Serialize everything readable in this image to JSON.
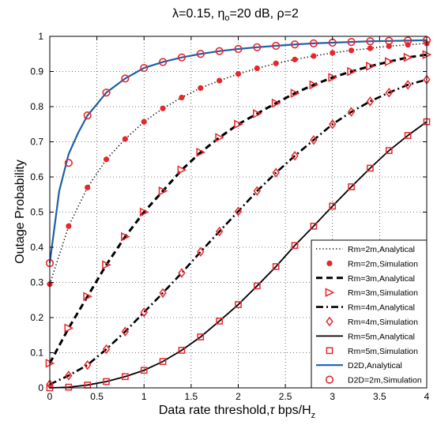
{
  "chart_data": {
    "type": "line",
    "title": "λ=0.15, η",
    "title_sub": "o",
    "title_rest": "=20 dB, ρ=2",
    "xlabel": "Data rate threshold,",
    "xlabel_symbol": "τ",
    "xlabel_unit": " bps/H",
    "xlabel_unit_sub": "z",
    "ylabel": "Outage Probability",
    "xlim": [
      0,
      4
    ],
    "ylim": [
      0,
      1
    ],
    "xticks": [
      "0",
      "0.5",
      "1",
      "1.5",
      "2",
      "2.5",
      "3",
      "3.5",
      "4"
    ],
    "yticks": [
      "0",
      "0.1",
      "0.2",
      "0.3",
      "0.4",
      "0.5",
      "0.6",
      "0.7",
      "0.8",
      "0.9",
      "1"
    ],
    "grid": true,
    "legend_position": "bottom-right",
    "series": [
      {
        "name": "Rm=2m,Analytical",
        "style": "dotted-line",
        "color": "#000000",
        "x": [
          0,
          0.2,
          0.4,
          0.6,
          0.8,
          1.0,
          1.2,
          1.4,
          1.6,
          1.8,
          2.0,
          2.2,
          2.4,
          2.6,
          2.8,
          3.0,
          3.2,
          3.4,
          3.6,
          3.8,
          4.0
        ],
        "y": [
          0.295,
          0.46,
          0.57,
          0.65,
          0.708,
          0.757,
          0.795,
          0.826,
          0.853,
          0.874,
          0.893,
          0.909,
          0.923,
          0.934,
          0.944,
          0.953,
          0.96,
          0.966,
          0.972,
          0.976,
          0.98
        ]
      },
      {
        "name": "Rm=2m,Simulation",
        "style": "filled-circle",
        "color": "#e8262b",
        "x": [
          0,
          0.2,
          0.4,
          0.6,
          0.8,
          1.0,
          1.2,
          1.4,
          1.6,
          1.8,
          2.0,
          2.2,
          2.4,
          2.6,
          2.8,
          3.0,
          3.2,
          3.4,
          3.6,
          3.8,
          4.0
        ],
        "y": [
          0.295,
          0.46,
          0.57,
          0.65,
          0.708,
          0.757,
          0.795,
          0.826,
          0.853,
          0.874,
          0.893,
          0.909,
          0.923,
          0.934,
          0.944,
          0.953,
          0.96,
          0.966,
          0.972,
          0.976,
          0.98
        ]
      },
      {
        "name": "Rm=3m,Analytical",
        "style": "dashed-line",
        "color": "#000000",
        "x": [
          0,
          0.2,
          0.4,
          0.6,
          0.8,
          1.0,
          1.2,
          1.4,
          1.6,
          1.8,
          2.0,
          2.2,
          2.4,
          2.6,
          2.8,
          3.0,
          3.2,
          3.4,
          3.6,
          3.8,
          4.0
        ],
        "y": [
          0.07,
          0.17,
          0.26,
          0.35,
          0.43,
          0.5,
          0.56,
          0.62,
          0.67,
          0.712,
          0.75,
          0.78,
          0.81,
          0.838,
          0.862,
          0.883,
          0.9,
          0.915,
          0.928,
          0.94,
          0.948
        ]
      },
      {
        "name": "Rm=3m,Simulation",
        "style": "triangle-right",
        "color": "#e8262b",
        "x": [
          0,
          0.2,
          0.4,
          0.6,
          0.8,
          1.0,
          1.2,
          1.4,
          1.6,
          1.8,
          2.0,
          2.2,
          2.4,
          2.6,
          2.8,
          3.0,
          3.2,
          3.4,
          3.6,
          3.8,
          4.0
        ],
        "y": [
          0.07,
          0.17,
          0.26,
          0.35,
          0.43,
          0.5,
          0.56,
          0.62,
          0.67,
          0.712,
          0.75,
          0.78,
          0.81,
          0.838,
          0.862,
          0.883,
          0.9,
          0.915,
          0.928,
          0.94,
          0.948
        ]
      },
      {
        "name": "Rm=4m,Analytical",
        "style": "dashdot-line",
        "color": "#000000",
        "x": [
          0,
          0.2,
          0.4,
          0.6,
          0.8,
          1.0,
          1.2,
          1.4,
          1.6,
          1.8,
          2.0,
          2.2,
          2.4,
          2.6,
          2.8,
          3.0,
          3.2,
          3.4,
          3.6,
          3.8,
          4.0
        ],
        "y": [
          0.01,
          0.035,
          0.065,
          0.11,
          0.16,
          0.215,
          0.27,
          0.327,
          0.387,
          0.445,
          0.502,
          0.56,
          0.612,
          0.66,
          0.705,
          0.75,
          0.785,
          0.815,
          0.84,
          0.862,
          0.877
        ]
      },
      {
        "name": "Rm=4m,Simulation",
        "style": "diamond",
        "color": "#e8262b",
        "x": [
          0,
          0.2,
          0.4,
          0.6,
          0.8,
          1.0,
          1.2,
          1.4,
          1.6,
          1.8,
          2.0,
          2.2,
          2.4,
          2.6,
          2.8,
          3.0,
          3.2,
          3.4,
          3.6,
          3.8,
          4.0
        ],
        "y": [
          0.01,
          0.035,
          0.065,
          0.11,
          0.16,
          0.215,
          0.27,
          0.327,
          0.387,
          0.445,
          0.502,
          0.56,
          0.612,
          0.66,
          0.705,
          0.75,
          0.785,
          0.815,
          0.84,
          0.862,
          0.877
        ]
      },
      {
        "name": "Rm=5m,Analytical",
        "style": "solid-line",
        "color": "#000000",
        "x": [
          0,
          0.2,
          0.4,
          0.6,
          0.8,
          1.0,
          1.2,
          1.4,
          1.6,
          1.8,
          2.0,
          2.2,
          2.4,
          2.6,
          2.8,
          3.0,
          3.2,
          3.4,
          3.6,
          3.8,
          4.0
        ],
        "y": [
          0.0,
          0.002,
          0.008,
          0.018,
          0.032,
          0.05,
          0.075,
          0.107,
          0.145,
          0.19,
          0.237,
          0.29,
          0.345,
          0.405,
          0.46,
          0.517,
          0.572,
          0.625,
          0.675,
          0.718,
          0.757
        ]
      },
      {
        "name": "Rm=5m,Simulation",
        "style": "square",
        "color": "#e8262b",
        "x": [
          0,
          0.2,
          0.4,
          0.6,
          0.8,
          1.0,
          1.2,
          1.4,
          1.6,
          1.8,
          2.0,
          2.2,
          2.4,
          2.6,
          2.8,
          3.0,
          3.2,
          3.4,
          3.6,
          3.8,
          4.0
        ],
        "y": [
          0.0,
          0.002,
          0.008,
          0.018,
          0.032,
          0.05,
          0.075,
          0.107,
          0.145,
          0.19,
          0.237,
          0.29,
          0.345,
          0.405,
          0.46,
          0.517,
          0.572,
          0.625,
          0.675,
          0.718,
          0.757
        ]
      },
      {
        "name": "D2D,Analytical",
        "style": "solid-line",
        "color": "#1f5fa8",
        "x": [
          0,
          0.1,
          0.2,
          0.3,
          0.4,
          0.5,
          0.6,
          0.8,
          1.0,
          1.2,
          1.4,
          1.6,
          1.8,
          2.0,
          2.2,
          2.4,
          2.6,
          2.8,
          3.0,
          3.2,
          3.4,
          3.6,
          3.8,
          4.0
        ],
        "y": [
          0.355,
          0.56,
          0.665,
          0.725,
          0.775,
          0.807,
          0.84,
          0.88,
          0.91,
          0.927,
          0.94,
          0.95,
          0.958,
          0.964,
          0.969,
          0.973,
          0.977,
          0.98,
          0.982,
          0.984,
          0.986,
          0.987,
          0.988,
          0.989
        ]
      },
      {
        "name": "D2D=2m,Simulation",
        "style": "open-circle",
        "color": "#e8262b",
        "x": [
          0,
          0.2,
          0.4,
          0.6,
          0.8,
          1.0,
          1.2,
          1.4,
          1.6,
          1.8,
          2.0,
          2.2,
          2.4,
          2.6,
          2.8,
          3.0,
          3.2,
          3.4,
          3.6,
          3.8,
          4.0
        ],
        "y": [
          0.355,
          0.64,
          0.775,
          0.84,
          0.88,
          0.91,
          0.927,
          0.94,
          0.95,
          0.958,
          0.964,
          0.969,
          0.973,
          0.977,
          0.98,
          0.982,
          0.984,
          0.986,
          0.987,
          0.988,
          0.989
        ]
      }
    ]
  }
}
